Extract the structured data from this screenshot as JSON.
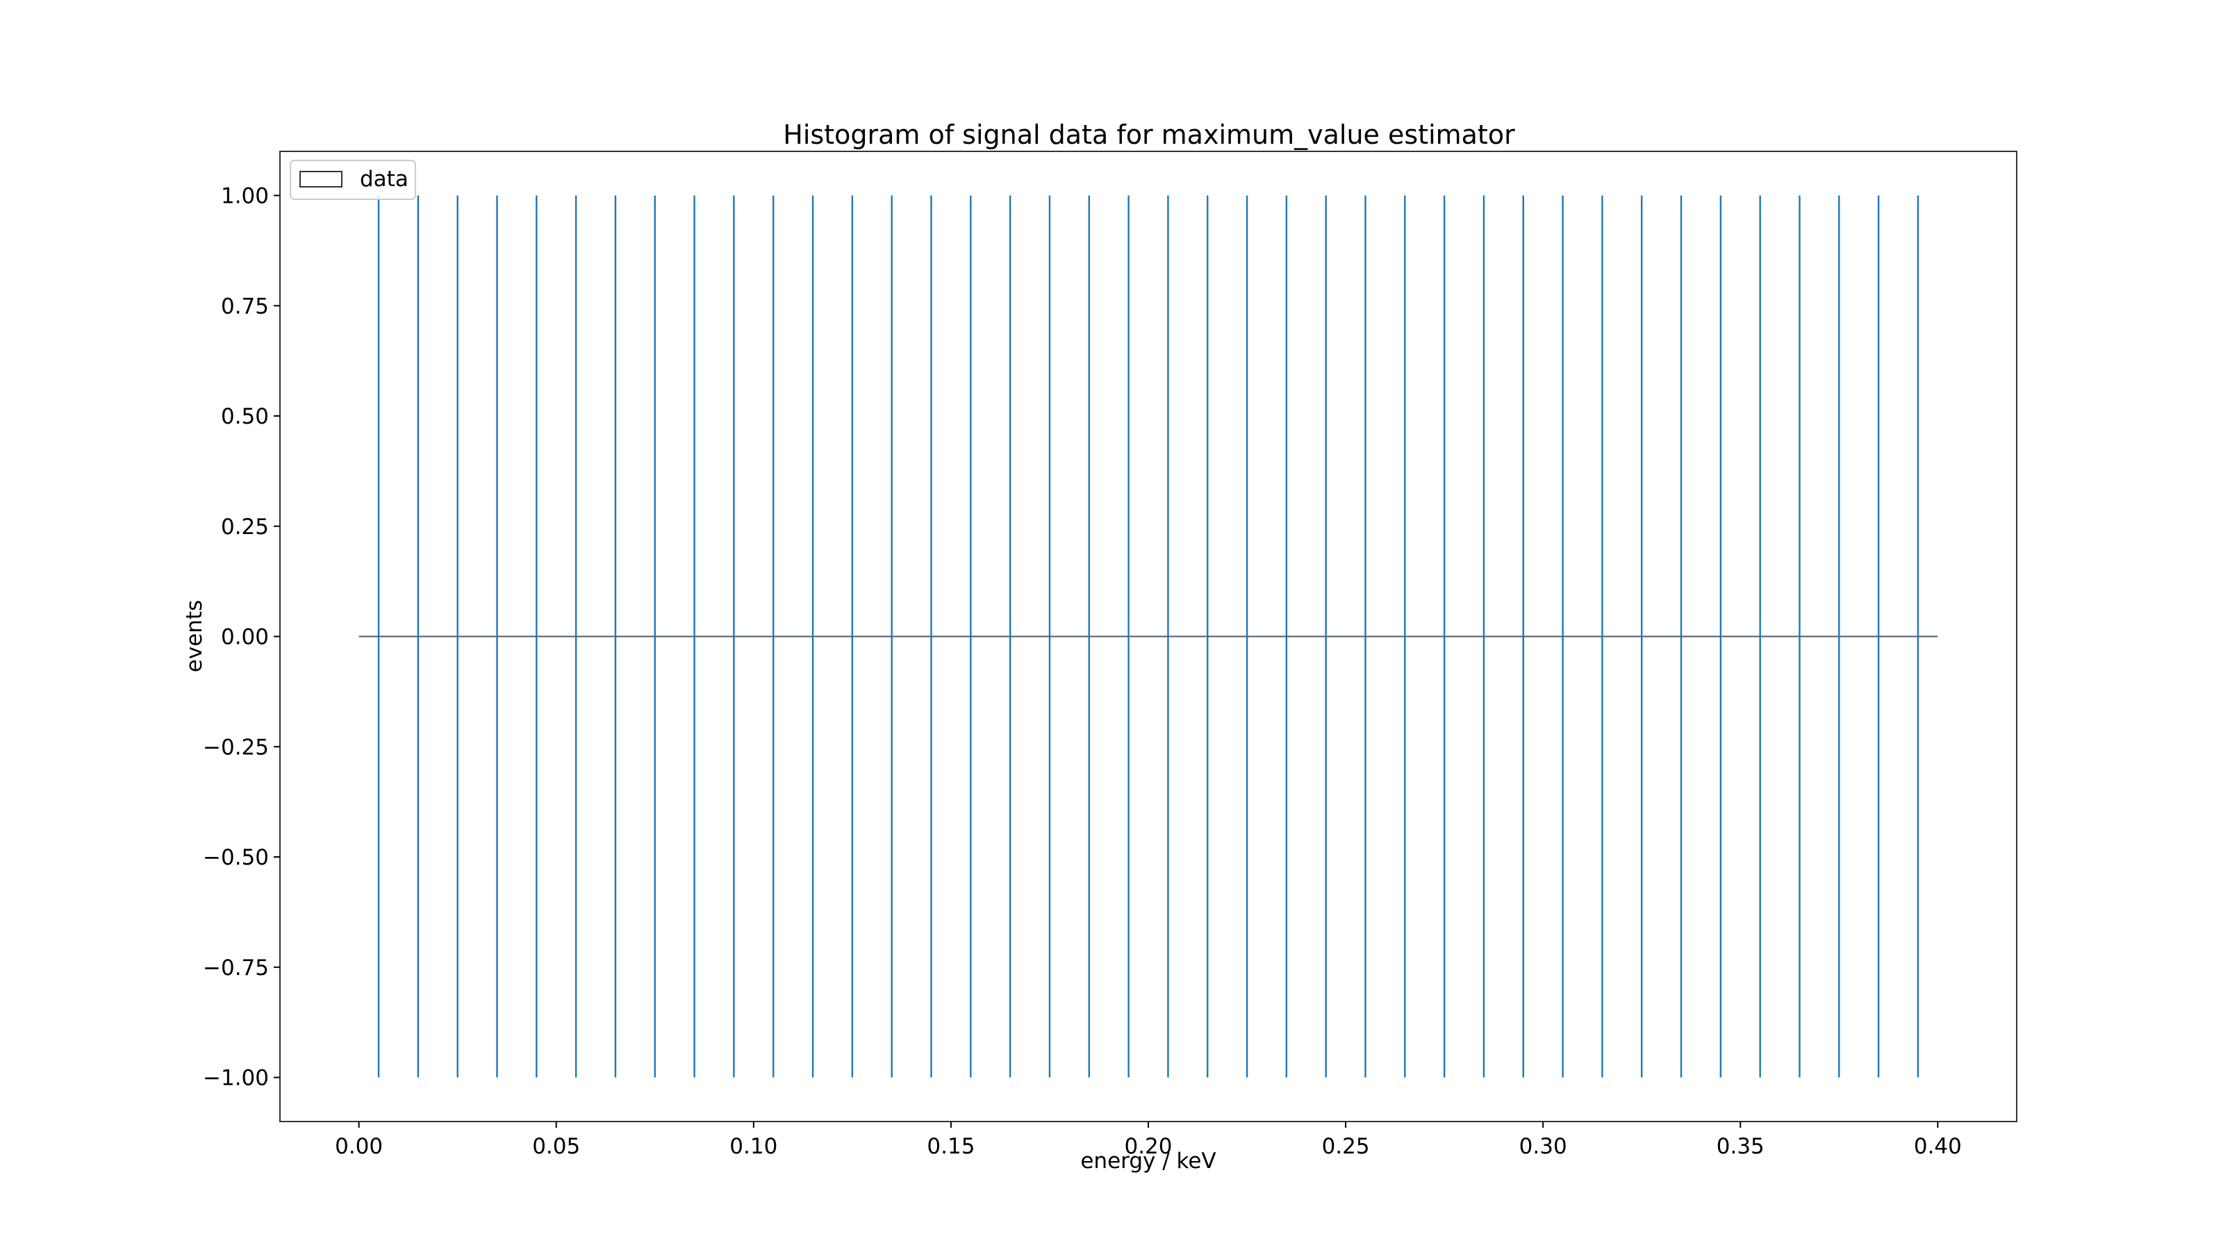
{
  "chart_data": {
    "type": "bar",
    "title": "Histogram of signal data for maximum_value estimator",
    "xlabel": "energy / keV",
    "ylabel": "events",
    "xlim": [
      -0.02,
      0.42
    ],
    "ylim": [
      -1.1,
      1.1
    ],
    "x_ticks": [
      0.0,
      0.05,
      0.1,
      0.15,
      0.2,
      0.25,
      0.3,
      0.35,
      0.4
    ],
    "x_tick_labels": [
      "0.00",
      "0.05",
      "0.10",
      "0.15",
      "0.20",
      "0.25",
      "0.30",
      "0.35",
      "0.40"
    ],
    "y_ticks": [
      1.0,
      0.75,
      0.5,
      0.25,
      0.0,
      -0.25,
      -0.5,
      -0.75,
      -1.0
    ],
    "y_tick_labels": [
      "1.00",
      "0.75",
      "0.50",
      "0.25",
      "0.00",
      "−0.25",
      "−0.50",
      "−0.75",
      "−1.00"
    ],
    "bin_edges": [
      0.0,
      0.4
    ],
    "bin_count": 40,
    "series": [
      {
        "name": "data",
        "values": [
          0,
          0,
          0,
          0,
          0,
          0,
          0,
          0,
          0,
          0,
          0,
          0,
          0,
          0,
          0,
          0,
          0,
          0,
          0,
          0,
          0,
          0,
          0,
          0,
          0,
          0,
          0,
          0,
          0,
          0,
          0,
          0,
          0,
          0,
          0,
          0,
          0,
          0,
          0,
          0
        ],
        "error_low": -1.0,
        "error_high": 1.0
      }
    ],
    "error_bar_x": [
      0.005,
      0.015,
      0.025,
      0.035,
      0.045,
      0.055,
      0.065,
      0.075,
      0.085,
      0.095,
      0.105,
      0.115,
      0.125,
      0.135,
      0.145,
      0.155,
      0.165,
      0.175,
      0.185,
      0.195,
      0.205,
      0.215,
      0.225,
      0.235,
      0.245,
      0.255,
      0.265,
      0.275,
      0.285,
      0.295,
      0.305,
      0.315,
      0.325,
      0.335,
      0.345,
      0.355,
      0.365,
      0.375,
      0.385,
      0.395
    ],
    "legend": {
      "position": "top-left",
      "entries": [
        "data"
      ]
    },
    "grid": false,
    "colors": {
      "histogram": "#4a5a6a",
      "error_bars": "#1f77b4",
      "axes": "#333333"
    }
  }
}
